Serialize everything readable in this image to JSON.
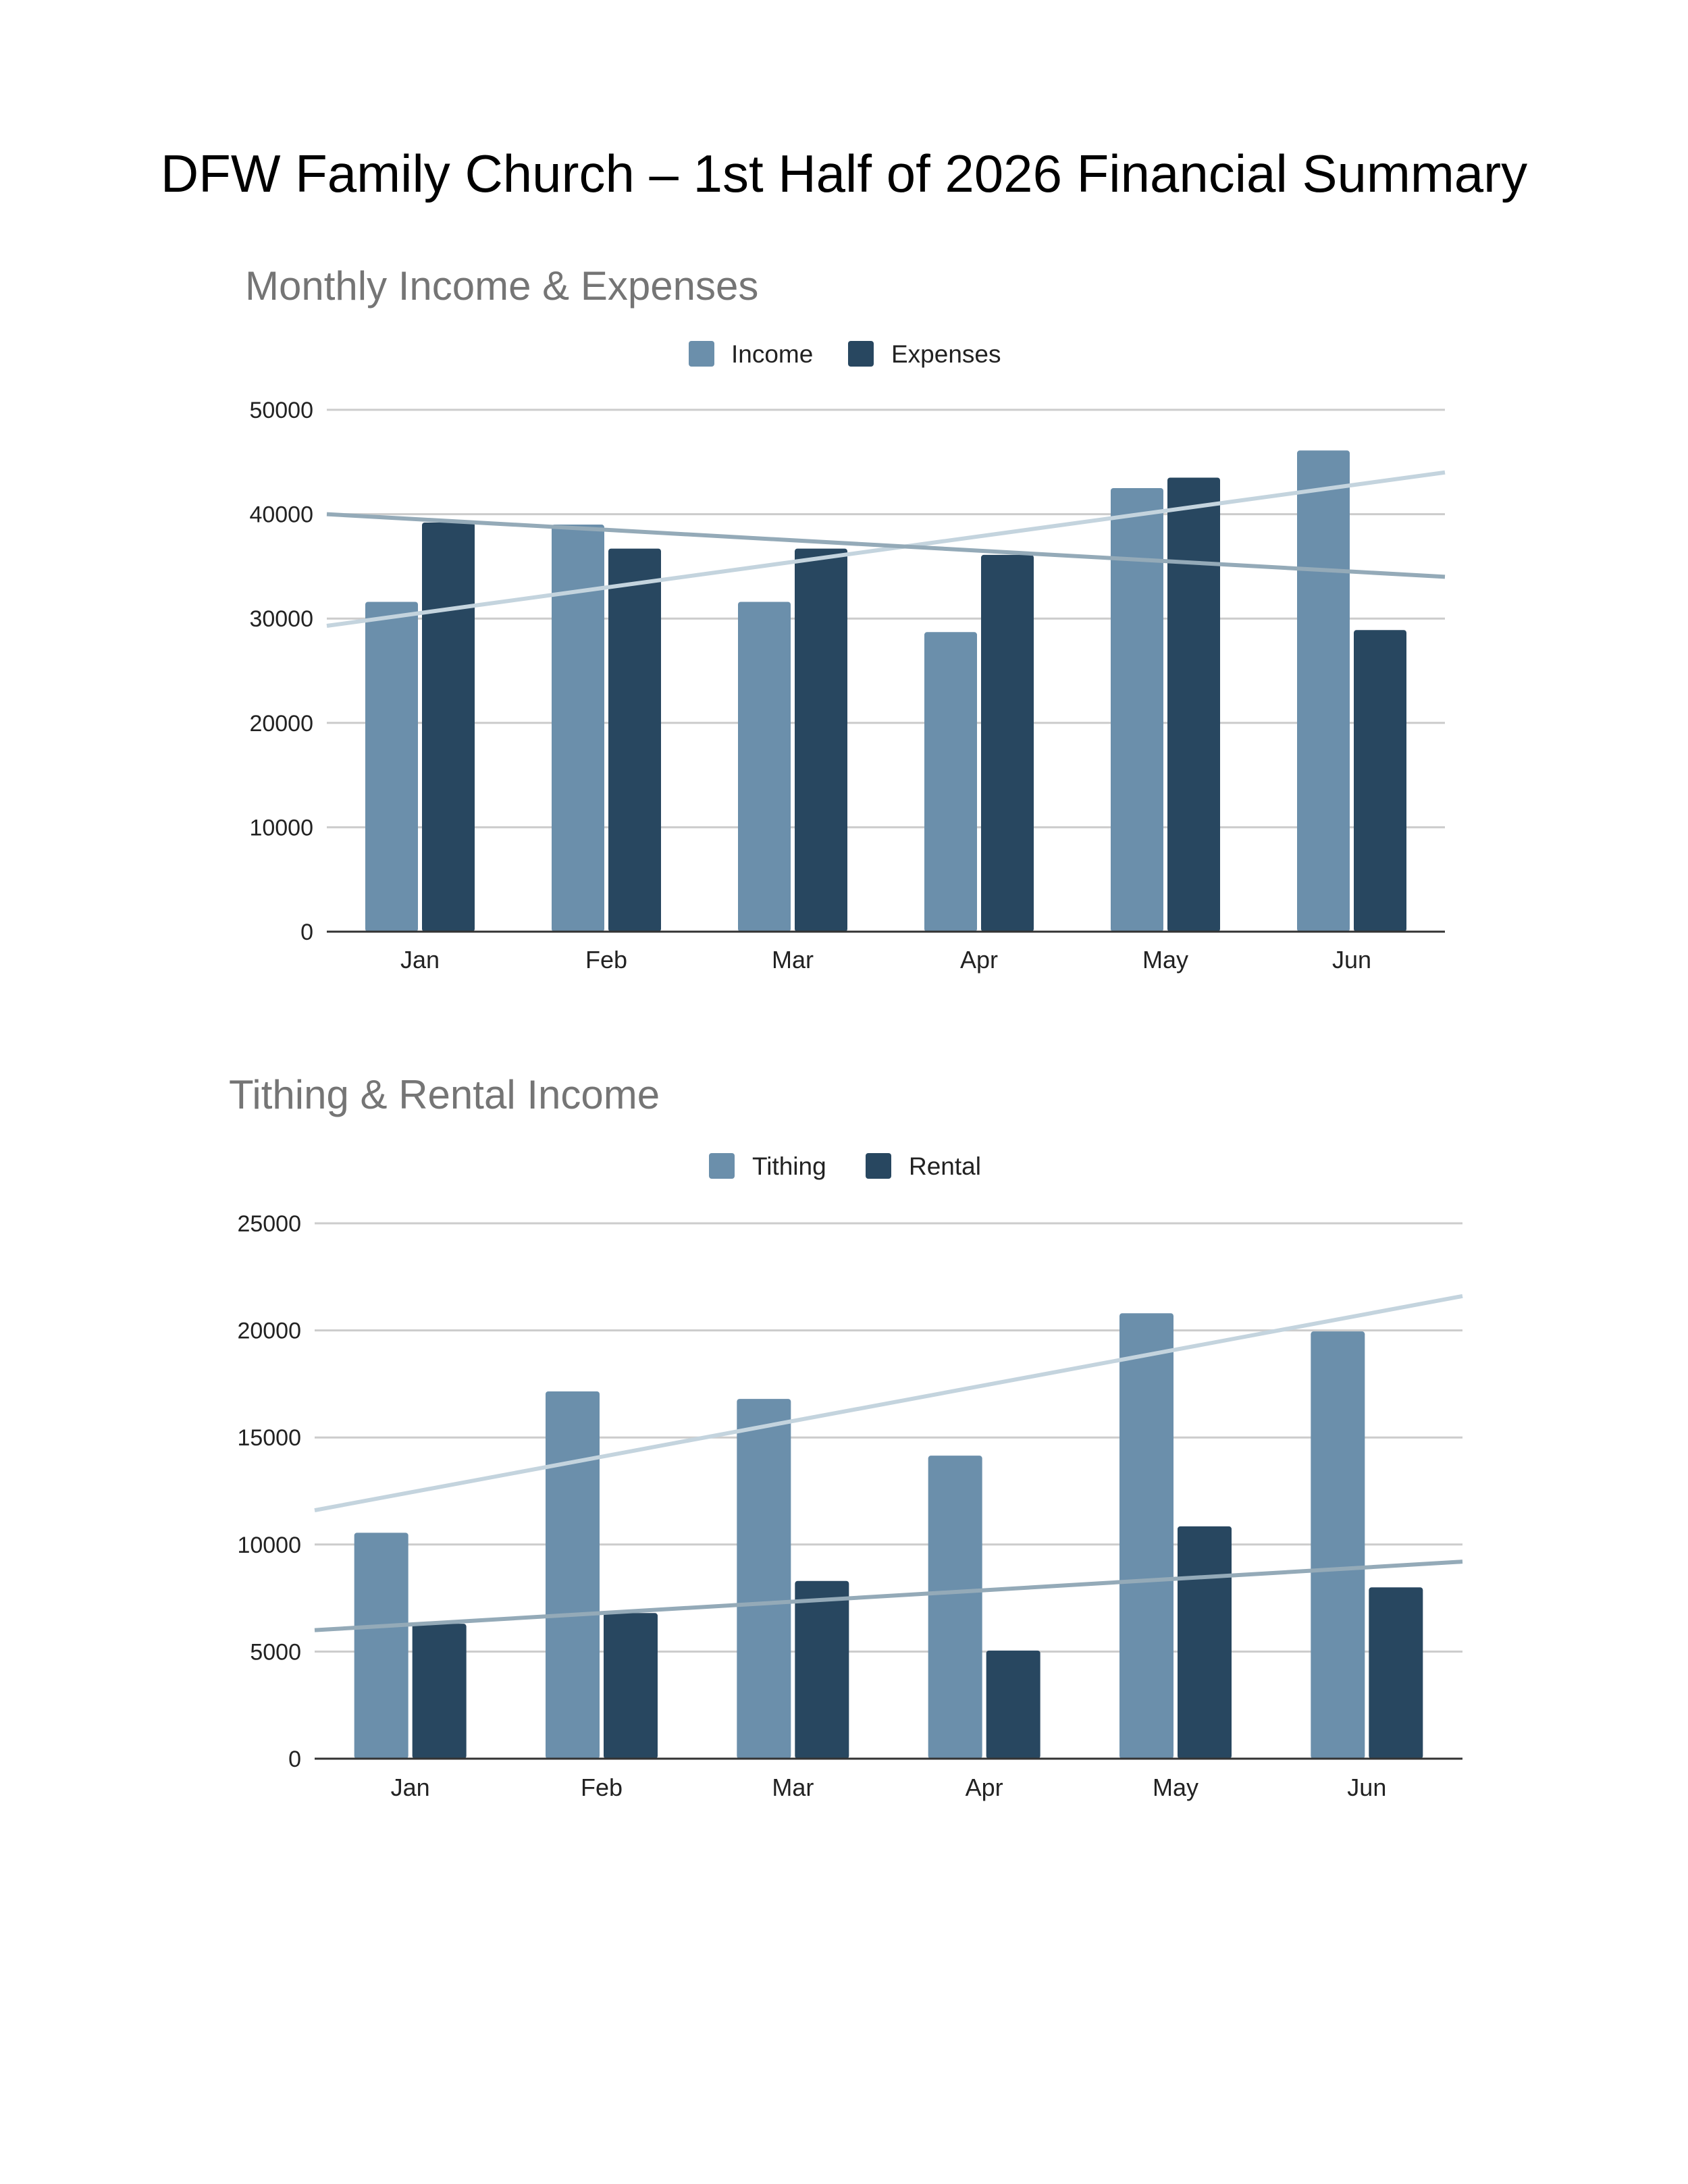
{
  "page": {
    "title": "DFW Family Church – 1st Half of 2026 Financial Summary"
  },
  "colors": {
    "light_series": "#6b8fab",
    "dark_series": "#284760",
    "trend_light": "#c4d4de",
    "trend_dark": "#94aab8",
    "grid": "#cccccc",
    "axis": "#333333",
    "chart_title": "#757575"
  },
  "chart_data": [
    {
      "type": "bar",
      "title": "Monthly Income & Expenses",
      "xlabel": "",
      "ylabel": "",
      "categories": [
        "Jan",
        "Feb",
        "Mar",
        "Apr",
        "May",
        "Jun"
      ],
      "series": [
        {
          "name": "Income",
          "values": [
            31600,
            39000,
            31600,
            28700,
            42500,
            46100
          ],
          "color": "#6b8fab"
        },
        {
          "name": "Expenses",
          "values": [
            39200,
            36700,
            36700,
            36100,
            43500,
            28900
          ],
          "color": "#284760"
        }
      ],
      "trendlines": [
        {
          "series": "Income",
          "start": 29300,
          "end": 44000,
          "color": "#c4d4de"
        },
        {
          "series": "Expenses",
          "start": 40000,
          "end": 34000,
          "color": "#94aab8"
        }
      ],
      "ylim": [
        0,
        50000
      ],
      "yticks": [
        "0",
        "10000",
        "20000",
        "30000",
        "40000",
        "50000"
      ],
      "grid": true,
      "legend": "top-center"
    },
    {
      "type": "bar",
      "title": "Tithing & Rental Income",
      "xlabel": "",
      "ylabel": "",
      "categories": [
        "Jan",
        "Feb",
        "Mar",
        "Apr",
        "May",
        "Jun"
      ],
      "series": [
        {
          "name": "Tithing",
          "values": [
            10550,
            17150,
            16800,
            14150,
            20800,
            19950
          ],
          "color": "#6b8fab"
        },
        {
          "name": "Rental",
          "values": [
            6300,
            6800,
            8300,
            5050,
            10850,
            8000
          ],
          "color": "#284760"
        }
      ],
      "trendlines": [
        {
          "series": "Tithing",
          "start": 11600,
          "end": 21600,
          "color": "#c4d4de"
        },
        {
          "series": "Rental",
          "start": 6000,
          "end": 9200,
          "color": "#94aab8"
        }
      ],
      "ylim": [
        0,
        25000
      ],
      "yticks": [
        "0",
        "5000",
        "10000",
        "15000",
        "20000",
        "25000"
      ],
      "grid": true,
      "legend": "top-center"
    }
  ]
}
